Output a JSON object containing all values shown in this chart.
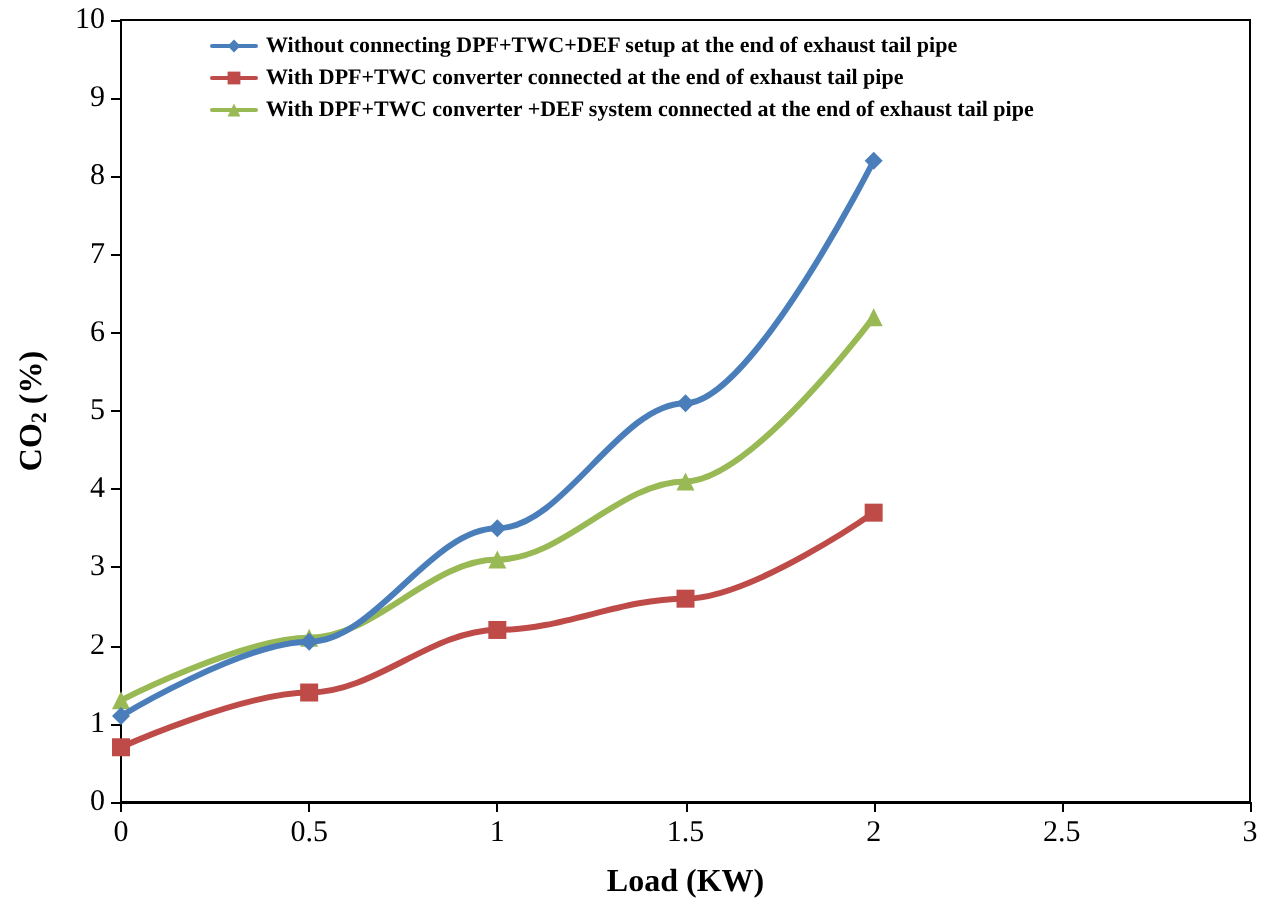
{
  "chart_data": {
    "type": "line",
    "xlabel": "Load (KW)",
    "ylabel": "CO$_{2}$ (%)",
    "x": [
      0,
      0.5,
      1,
      1.5,
      2
    ],
    "series": [
      {
        "name": "Without connecting DPF+TWC+DEF setup at the end of exhaust tail pipe",
        "color": "#4a7ebb",
        "marker": "diamond",
        "values": [
          1.1,
          2.05,
          3.5,
          5.1,
          8.2
        ]
      },
      {
        "name": "With DPF+TWC converter connected at the end of exhaust tail pipe",
        "color": "#be4b48",
        "marker": "square",
        "values": [
          0.7,
          1.4,
          2.2,
          2.6,
          3.7
        ]
      },
      {
        "name": "With DPF+TWC converter +DEF system connected at the end of exhaust tail pipe",
        "color": "#98b954",
        "marker": "triangle",
        "values": [
          1.3,
          2.1,
          3.1,
          4.1,
          6.2
        ]
      }
    ],
    "xlim": [
      0,
      3
    ],
    "xticks": [
      0,
      0.5,
      1,
      1.5,
      2,
      2.5,
      3
    ],
    "ylim": [
      0,
      10
    ],
    "yticks": [
      0,
      1,
      2,
      3,
      4,
      5,
      6,
      7,
      8,
      9,
      10
    ],
    "grid": false,
    "legend": "top left",
    "line_style": "solid"
  }
}
